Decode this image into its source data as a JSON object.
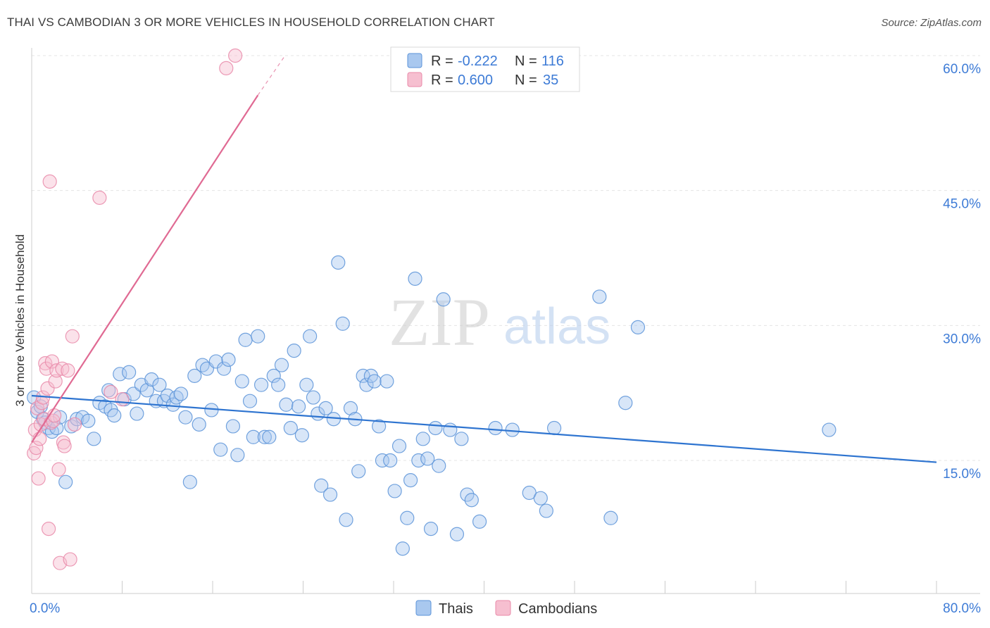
{
  "header": {
    "title": "THAI VS CAMBODIAN 3 OR MORE VEHICLES IN HOUSEHOLD CORRELATION CHART",
    "source": "Source: ZipAtlas.com"
  },
  "watermark": {
    "zip": "ZIP",
    "atlas": "atlas"
  },
  "legend": {
    "rows": [
      {
        "r_label": "R =",
        "r_value": "-0.222",
        "n_label": "N =",
        "n_value": "116"
      },
      {
        "r_label": "R =",
        "r_value": "0.600",
        "n_label": "N =",
        "n_value": "35"
      }
    ]
  },
  "colors": {
    "blue_fill": "#a9c8ef",
    "blue_stroke": "#5b93d8",
    "blue_line": "#2e74d0",
    "pink_fill": "#f6bfd0",
    "pink_stroke": "#e98aa9",
    "pink_line": "#e06a93"
  },
  "chart_data": {
    "type": "scatter",
    "title": "THAI VS CAMBODIAN 3 OR MORE VEHICLES IN HOUSEHOLD CORRELATION CHART",
    "xlabel": "",
    "ylabel": "3 or more Vehicles in Household",
    "xlim": [
      0,
      80
    ],
    "ylim": [
      0,
      63
    ],
    "x_tick_labels": [
      "0.0%",
      "80.0%"
    ],
    "y_ticks": [
      15,
      30,
      45,
      60
    ],
    "y_tick_labels": [
      "15.0%",
      "30.0%",
      "45.0%",
      "60.0%"
    ],
    "grid": true,
    "legend_position": "top-center",
    "series": [
      {
        "name": "Thais",
        "color": "#5b93d8",
        "trend": {
          "x": [
            0,
            80
          ],
          "y": [
            22.2,
            14.8
          ]
        },
        "points": [
          [
            0.2,
            22.0
          ],
          [
            0.5,
            20.4
          ],
          [
            0.8,
            21.0
          ],
          [
            1.0,
            19.6
          ],
          [
            1.2,
            19.2
          ],
          [
            1.5,
            18.6
          ],
          [
            1.8,
            18.2
          ],
          [
            2.2,
            18.6
          ],
          [
            2.5,
            19.8
          ],
          [
            3.0,
            12.6
          ],
          [
            3.5,
            18.8
          ],
          [
            4.0,
            19.6
          ],
          [
            4.5,
            19.8
          ],
          [
            5.0,
            19.4
          ],
          [
            5.5,
            17.4
          ],
          [
            6.0,
            21.4
          ],
          [
            6.5,
            21.0
          ],
          [
            6.8,
            22.8
          ],
          [
            7.0,
            20.6
          ],
          [
            7.3,
            20.0
          ],
          [
            7.8,
            24.6
          ],
          [
            8.2,
            21.8
          ],
          [
            8.6,
            24.8
          ],
          [
            9.0,
            22.4
          ],
          [
            9.3,
            20.2
          ],
          [
            9.7,
            23.4
          ],
          [
            10.2,
            22.8
          ],
          [
            10.6,
            24.0
          ],
          [
            11.0,
            21.6
          ],
          [
            11.3,
            23.4
          ],
          [
            11.7,
            21.6
          ],
          [
            12.0,
            22.2
          ],
          [
            12.5,
            21.2
          ],
          [
            12.8,
            22.0
          ],
          [
            13.2,
            22.4
          ],
          [
            13.6,
            19.8
          ],
          [
            14.0,
            12.6
          ],
          [
            14.4,
            24.4
          ],
          [
            14.8,
            19.0
          ],
          [
            15.1,
            25.6
          ],
          [
            15.5,
            25.2
          ],
          [
            15.9,
            20.6
          ],
          [
            16.3,
            26.0
          ],
          [
            16.7,
            16.2
          ],
          [
            17.0,
            25.2
          ],
          [
            17.4,
            26.2
          ],
          [
            17.8,
            18.8
          ],
          [
            18.2,
            15.6
          ],
          [
            18.6,
            23.8
          ],
          [
            18.9,
            28.4
          ],
          [
            19.3,
            21.6
          ],
          [
            19.6,
            17.6
          ],
          [
            20.0,
            28.8
          ],
          [
            20.3,
            23.4
          ],
          [
            20.6,
            17.6
          ],
          [
            21.0,
            17.6
          ],
          [
            21.4,
            24.4
          ],
          [
            21.8,
            23.4
          ],
          [
            22.1,
            25.6
          ],
          [
            22.5,
            21.2
          ],
          [
            22.9,
            18.6
          ],
          [
            23.2,
            27.2
          ],
          [
            23.6,
            21.0
          ],
          [
            23.9,
            17.8
          ],
          [
            24.3,
            23.4
          ],
          [
            24.6,
            28.8
          ],
          [
            24.9,
            22.0
          ],
          [
            25.3,
            20.2
          ],
          [
            25.6,
            12.2
          ],
          [
            26.0,
            20.8
          ],
          [
            26.4,
            11.2
          ],
          [
            26.7,
            19.6
          ],
          [
            27.1,
            37.0
          ],
          [
            27.5,
            30.2
          ],
          [
            27.8,
            8.4
          ],
          [
            28.2,
            20.8
          ],
          [
            28.6,
            19.6
          ],
          [
            28.9,
            13.8
          ],
          [
            29.3,
            24.4
          ],
          [
            29.6,
            23.4
          ],
          [
            30.0,
            24.4
          ],
          [
            30.3,
            23.8
          ],
          [
            30.7,
            18.8
          ],
          [
            31.0,
            15.0
          ],
          [
            31.4,
            23.8
          ],
          [
            31.7,
            15.0
          ],
          [
            32.1,
            11.6
          ],
          [
            32.5,
            16.6
          ],
          [
            32.8,
            5.2
          ],
          [
            33.2,
            8.6
          ],
          [
            33.5,
            12.8
          ],
          [
            33.9,
            35.2
          ],
          [
            34.2,
            15.0
          ],
          [
            34.6,
            17.4
          ],
          [
            35.0,
            15.2
          ],
          [
            35.3,
            7.4
          ],
          [
            35.7,
            18.6
          ],
          [
            36.0,
            14.4
          ],
          [
            36.4,
            32.9
          ],
          [
            37.0,
            18.4
          ],
          [
            37.6,
            6.8
          ],
          [
            38.0,
            17.4
          ],
          [
            38.5,
            11.2
          ],
          [
            38.9,
            10.6
          ],
          [
            39.6,
            8.2
          ],
          [
            41.0,
            18.6
          ],
          [
            42.5,
            18.4
          ],
          [
            44.0,
            11.4
          ],
          [
            45.0,
            10.8
          ],
          [
            45.5,
            9.4
          ],
          [
            46.2,
            18.6
          ],
          [
            50.2,
            33.2
          ],
          [
            51.2,
            8.6
          ],
          [
            52.5,
            21.4
          ],
          [
            53.6,
            29.8
          ],
          [
            70.5,
            18.4
          ]
        ]
      },
      {
        "name": "Cambodians",
        "color": "#e98aa9",
        "trend": {
          "x": [
            0,
            20
          ],
          "y": [
            17.0,
            55.6
          ]
        },
        "trend_ext": {
          "x": [
            20,
            22.4
          ],
          "y": [
            55.6,
            60.0
          ]
        },
        "points": [
          [
            0.2,
            15.8
          ],
          [
            0.3,
            18.4
          ],
          [
            0.4,
            16.4
          ],
          [
            0.5,
            20.8
          ],
          [
            0.6,
            13.0
          ],
          [
            0.7,
            17.4
          ],
          [
            0.8,
            19.0
          ],
          [
            0.9,
            21.4
          ],
          [
            1.0,
            22.0
          ],
          [
            1.1,
            19.6
          ],
          [
            1.2,
            25.8
          ],
          [
            1.3,
            25.2
          ],
          [
            1.4,
            23.0
          ],
          [
            1.5,
            7.4
          ],
          [
            1.6,
            46.0
          ],
          [
            1.7,
            19.2
          ],
          [
            1.8,
            26.0
          ],
          [
            1.9,
            19.4
          ],
          [
            2.0,
            20.0
          ],
          [
            2.1,
            23.8
          ],
          [
            2.2,
            25.0
          ],
          [
            2.4,
            14.0
          ],
          [
            2.5,
            3.6
          ],
          [
            2.7,
            25.2
          ],
          [
            2.8,
            17.0
          ],
          [
            2.9,
            16.6
          ],
          [
            3.2,
            25.0
          ],
          [
            3.4,
            4.0
          ],
          [
            3.6,
            28.8
          ],
          [
            3.8,
            19.0
          ],
          [
            6.0,
            44.2
          ],
          [
            7.0,
            22.6
          ],
          [
            8.0,
            21.8
          ],
          [
            17.2,
            58.6
          ],
          [
            18.0,
            60.0
          ]
        ]
      }
    ]
  }
}
